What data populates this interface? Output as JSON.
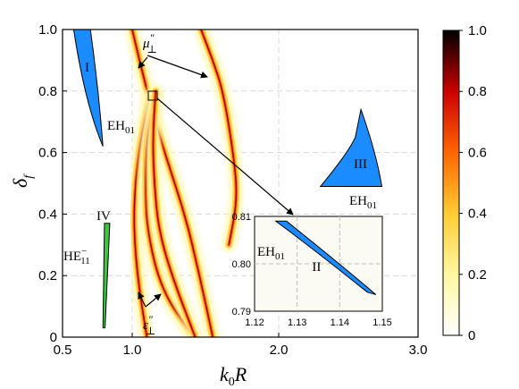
{
  "chart_data": {
    "type": "heatmap",
    "xlabel": "k0R",
    "ylabel": "δf",
    "xlim": [
      0.5,
      3.0
    ],
    "ylim": [
      0.0,
      1.0
    ],
    "x_ticks": [
      "0.5",
      "1.0",
      "2.0",
      "3.0"
    ],
    "y_ticks": [
      "0",
      "0.2",
      "0.4",
      "0.6",
      "0.8",
      "1.0"
    ],
    "grid": true,
    "colorbar": {
      "range": [
        0,
        1.0
      ],
      "ticks": [
        "0",
        "0.2",
        "0.4",
        "0.6",
        "0.8",
        "1.0"
      ],
      "colors": [
        "#ffffff",
        "#fff7a0",
        "#ffcc33",
        "#ff6600",
        "#cc0000",
        "#000000"
      ]
    },
    "curves": [
      {
        "name": "mu_perp_1",
        "x": [
          1.0,
          1.1,
          1.22,
          1.36,
          1.46,
          1.55
        ],
        "y": [
          1.0,
          0.8,
          0.6,
          0.4,
          0.2,
          0.0
        ]
      },
      {
        "name": "mu_perp_2",
        "x": [
          1.47,
          1.55,
          1.62,
          1.69,
          1.72,
          1.66
        ],
        "y": [
          1.0,
          0.9,
          0.8,
          0.6,
          0.45,
          0.3
        ]
      },
      {
        "name": "eps_perp_1",
        "x": [
          1.12,
          1.06,
          1.02,
          1.01,
          1.04,
          1.1
        ],
        "y": [
          0.78,
          0.65,
          0.5,
          0.35,
          0.18,
          0.0
        ]
      },
      {
        "name": "eps_perp_2",
        "x": [
          1.15,
          1.1,
          1.09,
          1.1,
          1.2,
          1.42
        ],
        "y": [
          0.78,
          0.65,
          0.5,
          0.35,
          0.15,
          0.0
        ]
      },
      {
        "name": "eps_perp_3",
        "x": [
          1.16,
          1.14,
          1.15,
          1.18,
          1.27,
          1.43
        ],
        "y": [
          0.8,
          0.65,
          0.5,
          0.35,
          0.2,
          0.0
        ]
      }
    ],
    "regions": [
      {
        "label": "I",
        "mode": "EH01",
        "color": "#1a8cff",
        "x": [
          0.58,
          0.7,
          0.74,
          0.79
        ],
        "y": [
          1.0,
          1.0,
          0.62,
          0.62
        ]
      },
      {
        "label": "III",
        "mode": "EH01",
        "color": "#1a8cff",
        "x": [
          2.3,
          2.59,
          2.74
        ],
        "y": [
          0.49,
          0.74,
          0.49
        ]
      },
      {
        "label": "IV",
        "mode": "HE11",
        "color": "#3cc83c",
        "x": [
          0.79,
          0.82
        ],
        "y": [
          0.03,
          0.37
        ]
      }
    ],
    "inset": {
      "xlim": [
        1.12,
        1.15
      ],
      "ylim": [
        0.79,
        0.81
      ],
      "x_ticks": [
        "1.12",
        "1.13",
        "1.14",
        "1.15"
      ],
      "y_ticks": [
        "0.79",
        "0.80",
        "0.81"
      ],
      "region_label": "II",
      "mode": "EH01",
      "polygon": {
        "x": [
          1.125,
          1.1275,
          1.1485,
          1.1465
        ],
        "y": [
          0.809,
          0.809,
          0.7935,
          0.794
        ]
      }
    },
    "annotations": [
      {
        "text": "μ⊥″",
        "points_to": "mu_perp curves"
      },
      {
        "text": "ε⊥″",
        "points_to": "eps_perp curves"
      }
    ]
  },
  "labels": {
    "x_axis_main": "k",
    "x_axis_sub": "0",
    "x_axis_rest": "R",
    "y_axis_main": "δ",
    "y_axis_sub": "f",
    "region_I": "I",
    "region_II": "II",
    "region_III": "III",
    "region_IV": "IV",
    "mode_eh_main": "EH",
    "mode_eh_sub": "01",
    "mode_he_main": "HE",
    "mode_he_sub": "11",
    "mode_he_sup": "−",
    "mu_main": "μ",
    "mu_mark": "″",
    "mu_sub": "⊥",
    "eps_main": "ε",
    "eps_mark": "″",
    "eps_sub": "⊥"
  }
}
